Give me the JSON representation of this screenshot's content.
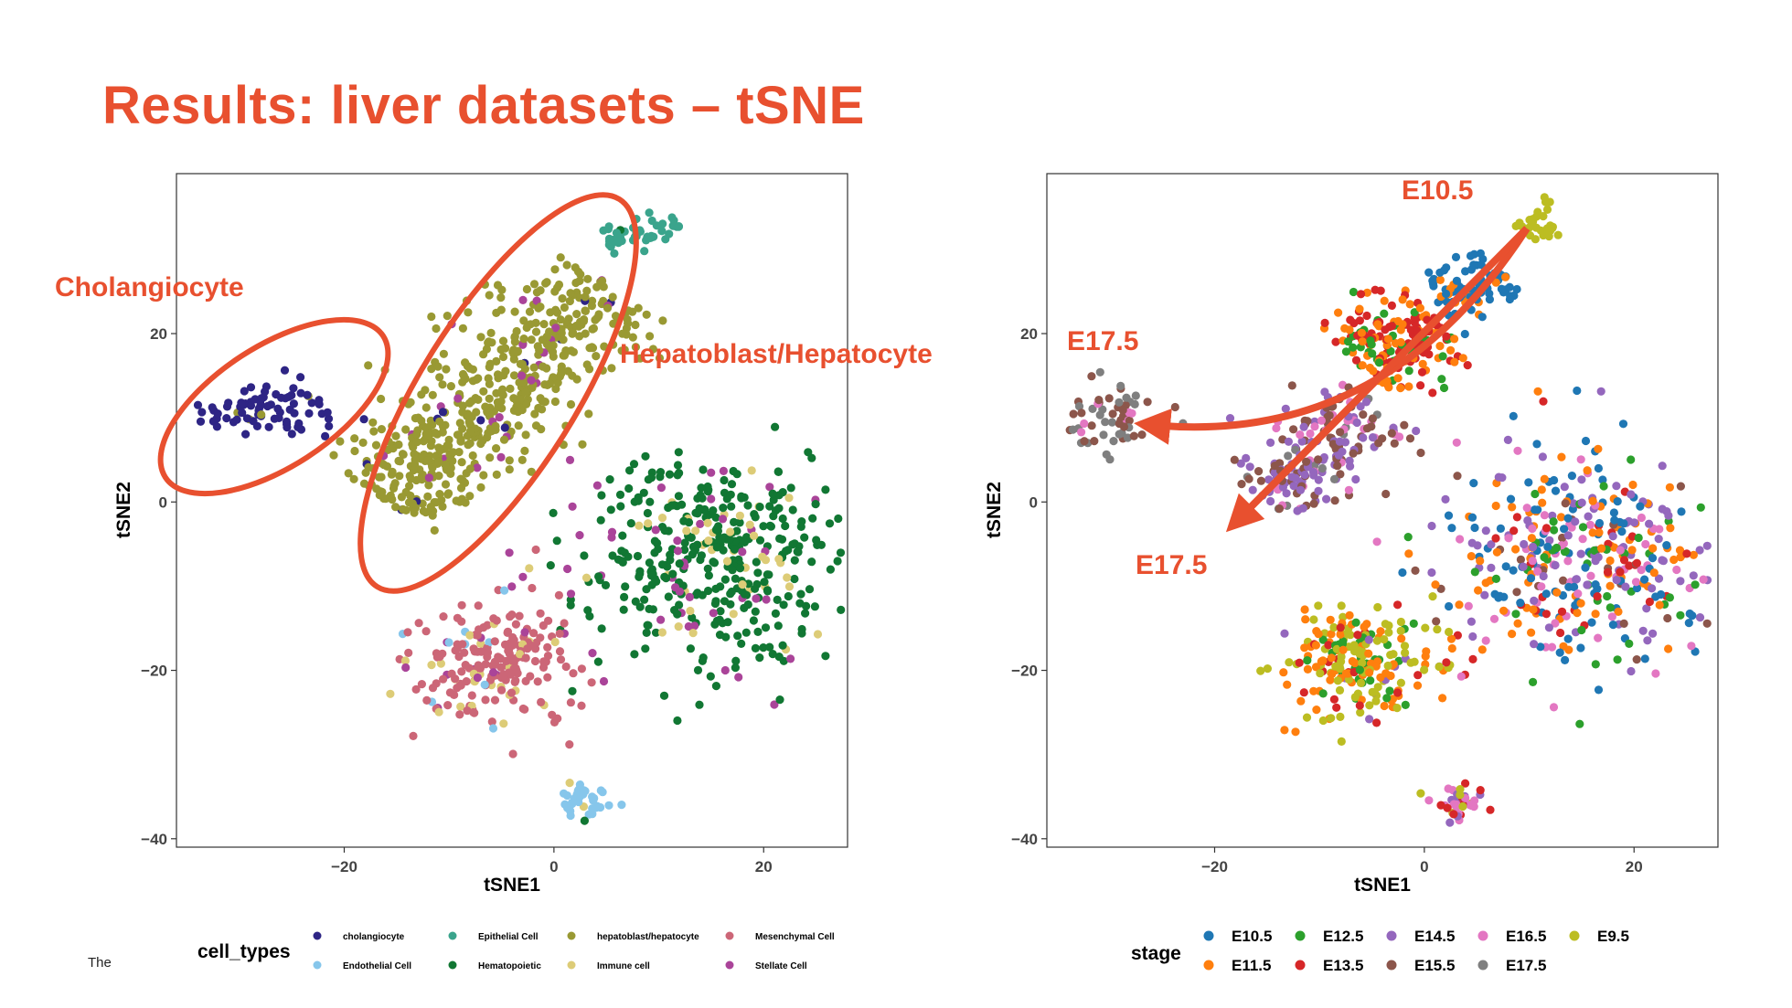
{
  "slide": {
    "title": "Results: liver datasets – tSNE",
    "footer": "The"
  },
  "annotations": {
    "left": [
      "Cholangiocyte",
      "Hepatoblast/Hepatocyte"
    ],
    "right_top": "E10.5",
    "right_left": "E17.5",
    "right_bottom": "E17.5"
  },
  "colors": {
    "accent": "#E8502F",
    "cholangiocyte": "#2E2585",
    "Endothelial Cell": "#86C6EB",
    "Epithelial Cell": "#3AA48C",
    "Hematopoietic": "#117733",
    "hepatoblast/hepatocyte": "#999933",
    "Immune cell": "#DDCC77",
    "Mesenchymal Cell": "#CC6677",
    "Stellate Cell": "#AA4499",
    "E10.5": "#1F77B4",
    "E11.5": "#FF7F0E",
    "E12.5": "#2CA02C",
    "E13.5": "#D62728",
    "E14.5": "#9467BD",
    "E15.5": "#8C564B",
    "E16.5": "#E377C2",
    "E17.5": "#7F7F7F",
    "E9.5": "#BCBD22"
  },
  "chart_data": [
    {
      "type": "scatter",
      "title": "",
      "xlabel": "tSNE1",
      "ylabel": "tSNE2",
      "xlim": [
        -36,
        28
      ],
      "ylim": [
        -41,
        39
      ],
      "xticks": [
        -20,
        0,
        20
      ],
      "xtick_labels": [
        "−20",
        "0",
        "20"
      ],
      "yticks": [
        20,
        0,
        -20,
        -40
      ],
      "ytick_labels": [
        "20",
        "0",
        "−20",
        "−40"
      ],
      "grid": false,
      "legend_position": "bottom",
      "legend_title": "cell_types",
      "legend": [
        "cholangiocyte",
        "Endothelial Cell",
        "Epithelial Cell",
        "Hematopoietic",
        "hepatoblast/hepatocyte",
        "Immune cell",
        "Mesenchymal Cell",
        "Stellate Cell"
      ],
      "clusters": [
        {
          "name": "cholangiocyte",
          "cx": -27,
          "cy": 11,
          "sx": 3.2,
          "sy": 1.6,
          "n": 80,
          "mix": {
            "cholangiocyte": 0.95,
            "hepatoblast/hepatocyte": 0.05
          }
        },
        {
          "name": "hepatoblast/hepatocyte",
          "x0": -16,
          "y0": 0,
          "x1": 5,
          "y1": 26,
          "spread": 3.3,
          "n": 560,
          "mix": {
            "hepatoblast/hepatocyte": 0.95,
            "Stellate Cell": 0.04,
            "cholangiocyte": 0.01
          }
        },
        {
          "name": "Epithelial Cell",
          "x0": 5,
          "y0": 31,
          "x1": 12,
          "y1": 33,
          "spread": 0.8,
          "n": 45,
          "mix": {
            "Epithelial Cell": 0.92,
            "Hematopoietic": 0.08
          }
        },
        {
          "name": "Hematopoietic",
          "cx": 15,
          "cy": -7,
          "sx": 6.5,
          "sy": 6.5,
          "n": 430,
          "mix": {
            "Hematopoietic": 0.8,
            "Immune cell": 0.1,
            "Stellate Cell": 0.1
          }
        },
        {
          "name": "Mesenchymal Cell",
          "cx": -6,
          "cy": -19,
          "sx": 3.6,
          "sy": 3.4,
          "n": 220,
          "mix": {
            "Mesenchymal Cell": 0.8,
            "Immune cell": 0.1,
            "Stellate Cell": 0.05,
            "Endothelial Cell": 0.05
          }
        },
        {
          "name": "Endothelial Cell",
          "cx": 3,
          "cy": -35.5,
          "sx": 1.3,
          "sy": 1.1,
          "n": 38,
          "mix": {
            "Endothelial Cell": 0.75,
            "Hematopoietic": 0.1,
            "Immune cell": 0.1,
            "Stellate Cell": 0.05
          }
        }
      ]
    },
    {
      "type": "scatter",
      "title": "",
      "xlabel": "tSNE1",
      "ylabel": "tSNE2",
      "xlim": [
        -36,
        28
      ],
      "ylim": [
        -41,
        39
      ],
      "xticks": [
        -20,
        0,
        20
      ],
      "xtick_labels": [
        "−20",
        "0",
        "20"
      ],
      "yticks": [
        20,
        0,
        -20,
        -40
      ],
      "ytick_labels": [
        "20",
        "0",
        "−20",
        "−40"
      ],
      "grid": false,
      "legend_position": "bottom",
      "legend_title": "stage",
      "legend": [
        "E10.5",
        "E11.5",
        "E12.5",
        "E13.5",
        "E14.5",
        "E15.5",
        "E16.5",
        "E17.5",
        "E9.5"
      ],
      "clusters": [
        {
          "name": "E10.5 arm",
          "x0": 1,
          "y0": 24,
          "x1": 7,
          "y1": 28,
          "spread": 1.8,
          "n": 80,
          "mix": {
            "E10.5": 0.8,
            "E11.5": 0.2
          }
        },
        {
          "name": "E9.5 tip",
          "cx": 11,
          "cy": 33,
          "sx": 1.1,
          "sy": 1.1,
          "n": 28,
          "mix": {
            "E9.5": 1.0
          }
        },
        {
          "name": "mid arm",
          "x0": -6,
          "y0": 16,
          "x1": 1,
          "y1": 22,
          "spread": 2.6,
          "n": 190,
          "mix": {
            "E11.5": 0.4,
            "E12.5": 0.25,
            "E13.5": 0.35
          }
        },
        {
          "name": "late arm",
          "x0": -15,
          "y0": 0,
          "x1": -5,
          "y1": 12,
          "spread": 2.6,
          "n": 200,
          "mix": {
            "E14.5": 0.45,
            "E15.5": 0.4,
            "E16.5": 0.1,
            "E17.5": 0.05
          }
        },
        {
          "name": "E17.5 group",
          "cx": -30,
          "cy": 10,
          "sx": 2.2,
          "sy": 1.8,
          "n": 60,
          "mix": {
            "E17.5": 0.55,
            "E15.5": 0.35,
            "E16.5": 0.1
          }
        },
        {
          "name": "Hematopoietic",
          "cx": 15,
          "cy": -7,
          "sx": 6.5,
          "sy": 6.5,
          "n": 430,
          "mix": {
            "E10.5": 0.22,
            "E11.5": 0.22,
            "E12.5": 0.12,
            "E14.5": 0.18,
            "E16.5": 0.12,
            "E13.5": 0.08,
            "E15.5": 0.06
          }
        },
        {
          "name": "Mesenchymal",
          "cx": -6,
          "cy": -19,
          "sx": 3.6,
          "sy": 3.4,
          "n": 220,
          "mix": {
            "E9.5": 0.4,
            "E11.5": 0.3,
            "E12.5": 0.15,
            "E13.5": 0.1,
            "E14.5": 0.05
          }
        },
        {
          "name": "Endothelial",
          "cx": 3,
          "cy": -35.5,
          "sx": 1.3,
          "sy": 1.1,
          "n": 38,
          "mix": {
            "E16.5": 0.4,
            "E13.5": 0.3,
            "E14.5": 0.2,
            "E9.5": 0.1
          }
        }
      ]
    }
  ]
}
